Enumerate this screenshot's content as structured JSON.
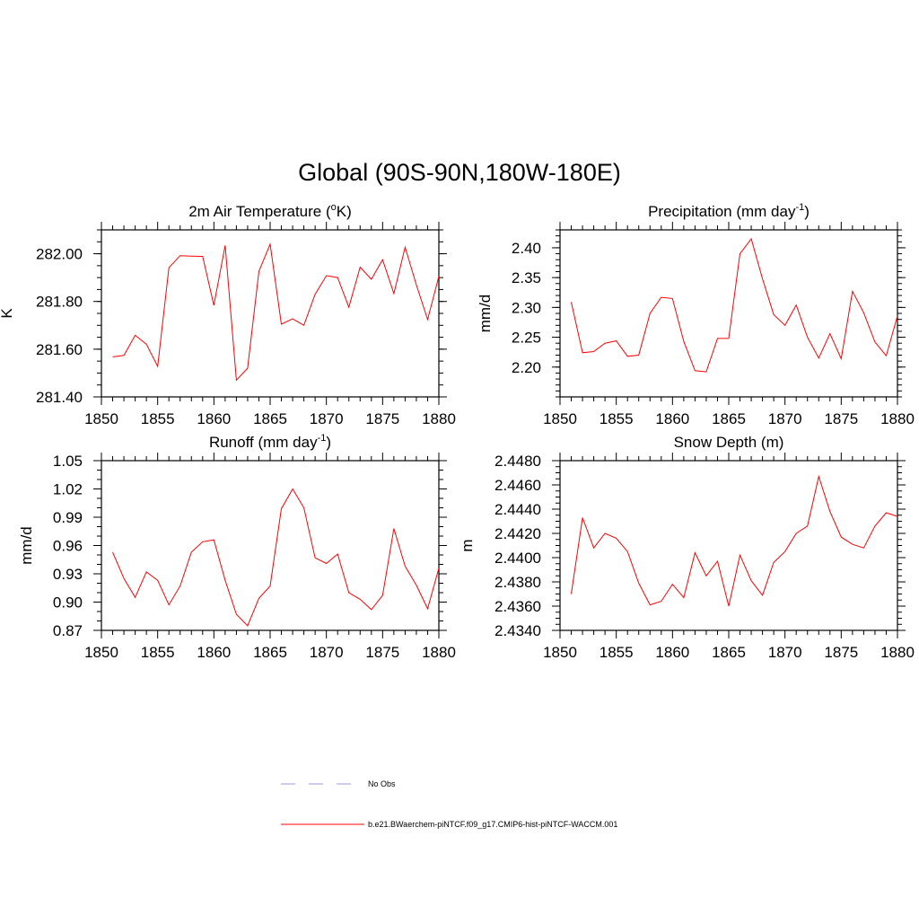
{
  "figure": {
    "title": "Global (90S-90N,180W-180E)"
  },
  "legend": {
    "entries": [
      {
        "label": "No Obs",
        "color": "#9999dd",
        "style": "dashed"
      },
      {
        "label": "b.e21.BWaerchem-piNTCF.f09_g17.CMIP6-hist-piNTCF-WACCM.001",
        "color": "#ff0000",
        "style": "solid"
      }
    ]
  },
  "chart_data": [
    {
      "id": "temp",
      "type": "line",
      "title": "2m Air Temperature (",
      "title_sup": "o",
      "title_after": "K)",
      "ylabel": "K",
      "xlim": [
        1850,
        1880
      ],
      "ylim": [
        281.4,
        282.1
      ],
      "xticks": [
        1850,
        1855,
        1860,
        1865,
        1870,
        1875,
        1880
      ],
      "yticks": [
        281.4,
        281.6,
        281.8,
        282.0
      ],
      "ytick_labels": [
        "281.40",
        "281.60",
        "281.80",
        "282.00"
      ],
      "ytick_step": 0.2,
      "yminor_step": 0.05,
      "x": [
        1851,
        1852,
        1853,
        1854,
        1855,
        1856,
        1857,
        1858,
        1859,
        1860,
        1861,
        1862,
        1863,
        1864,
        1865,
        1866,
        1867,
        1868,
        1869,
        1870,
        1871,
        1872,
        1873,
        1874,
        1875,
        1876,
        1877,
        1878,
        1879,
        1880
      ],
      "series": [
        {
          "name": "b.e21.BWaerchem-piNTCF.f09_g17.CMIP6-hist-piNTCF-WACCM.001",
          "color": "#ff0000",
          "values": [
            281.568,
            281.574,
            281.658,
            281.621,
            281.528,
            281.941,
            281.992,
            281.99,
            281.989,
            281.784,
            282.035,
            281.47,
            281.52,
            281.926,
            282.04,
            281.705,
            281.727,
            281.7,
            281.83,
            281.908,
            281.9,
            281.776,
            281.944,
            281.893,
            281.975,
            281.833,
            282.027,
            281.87,
            281.724,
            281.905
          ]
        }
      ]
    },
    {
      "id": "precip",
      "type": "line",
      "title": "Precipitation (mm day",
      "title_sup": "-1",
      "title_after": ")",
      "ylabel": "mm/d",
      "xlim": [
        1850,
        1880
      ],
      "ylim": [
        2.15,
        2.43
      ],
      "xticks": [
        1850,
        1855,
        1860,
        1865,
        1870,
        1875,
        1880
      ],
      "yticks": [
        2.2,
        2.25,
        2.3,
        2.35,
        2.4
      ],
      "ytick_labels": [
        "2.20",
        "2.25",
        "2.30",
        "2.35",
        "2.40"
      ],
      "yminor_step": 0.01,
      "x": [
        1851,
        1852,
        1853,
        1854,
        1855,
        1856,
        1857,
        1858,
        1859,
        1860,
        1861,
        1862,
        1863,
        1864,
        1865,
        1866,
        1867,
        1868,
        1869,
        1870,
        1871,
        1872,
        1873,
        1874,
        1875,
        1876,
        1877,
        1878,
        1879,
        1880
      ],
      "series": [
        {
          "name": "b.e21.BWaerchem-piNTCF.f09_g17.CMIP6-hist-piNTCF-WACCM.001",
          "color": "#ff0000",
          "values": [
            2.309,
            2.224,
            2.226,
            2.24,
            2.244,
            2.218,
            2.22,
            2.29,
            2.317,
            2.315,
            2.243,
            2.194,
            2.192,
            2.248,
            2.248,
            2.39,
            2.415,
            2.348,
            2.288,
            2.27,
            2.304,
            2.25,
            2.215,
            2.256,
            2.214,
            2.327,
            2.291,
            2.242,
            2.219,
            2.286
          ]
        }
      ]
    },
    {
      "id": "runoff",
      "type": "line",
      "title": "Runoff (mm day",
      "title_sup": "-1",
      "title_after": ")",
      "ylabel": "mm/d",
      "xlim": [
        1850,
        1880
      ],
      "ylim": [
        0.87,
        1.05
      ],
      "xticks": [
        1850,
        1855,
        1860,
        1865,
        1870,
        1875,
        1880
      ],
      "yticks": [
        0.87,
        0.9,
        0.93,
        0.96,
        0.99,
        1.02,
        1.05
      ],
      "ytick_labels": [
        "0.87",
        "0.90",
        "0.93",
        "0.96",
        "0.99",
        "1.02",
        "1.05"
      ],
      "yminor_step": 0.01,
      "x": [
        1851,
        1852,
        1853,
        1854,
        1855,
        1856,
        1857,
        1858,
        1859,
        1860,
        1861,
        1862,
        1863,
        1864,
        1865,
        1866,
        1867,
        1868,
        1869,
        1870,
        1871,
        1872,
        1873,
        1874,
        1875,
        1876,
        1877,
        1878,
        1879,
        1880
      ],
      "series": [
        {
          "name": "b.e21.BWaerchem-piNTCF.f09_g17.CMIP6-hist-piNTCF-WACCM.001",
          "color": "#ff0000",
          "values": [
            0.953,
            0.925,
            0.905,
            0.932,
            0.923,
            0.897,
            0.917,
            0.953,
            0.964,
            0.966,
            0.923,
            0.887,
            0.875,
            0.904,
            0.917,
            0.999,
            1.02,
            1.0,
            0.947,
            0.941,
            0.951,
            0.91,
            0.903,
            0.892,
            0.907,
            0.978,
            0.938,
            0.918,
            0.893,
            0.936
          ]
        }
      ]
    },
    {
      "id": "snow",
      "type": "line",
      "title": "Snow Depth (m)",
      "title_sup": "",
      "title_after": "",
      "ylabel": "m",
      "xlim": [
        1850,
        1880
      ],
      "ylim": [
        2.434,
        2.448
      ],
      "xticks": [
        1850,
        1855,
        1860,
        1865,
        1870,
        1875,
        1880
      ],
      "yticks": [
        2.434,
        2.436,
        2.438,
        2.44,
        2.442,
        2.444,
        2.446,
        2.448
      ],
      "ytick_labels": [
        "2.4340",
        "2.4360",
        "2.4380",
        "2.4400",
        "2.4420",
        "2.4440",
        "2.4460",
        "2.4480"
      ],
      "yminor_step": 0.0005,
      "x": [
        1851,
        1852,
        1853,
        1854,
        1855,
        1856,
        1857,
        1858,
        1859,
        1860,
        1861,
        1862,
        1863,
        1864,
        1865,
        1866,
        1867,
        1868,
        1869,
        1870,
        1871,
        1872,
        1873,
        1874,
        1875,
        1876,
        1877,
        1878,
        1879,
        1880
      ],
      "series": [
        {
          "name": "b.e21.BWaerchem-piNTCF.f09_g17.CMIP6-hist-piNTCF-WACCM.001",
          "color": "#ff0000",
          "values": [
            2.437,
            2.4433,
            2.4408,
            2.442,
            2.4416,
            2.4405,
            2.4379,
            2.4361,
            2.4364,
            2.4378,
            2.4367,
            2.4404,
            2.4385,
            2.4397,
            2.436,
            2.4402,
            2.4381,
            2.4369,
            2.4396,
            2.4405,
            2.442,
            2.4426,
            2.4467,
            2.4438,
            2.4417,
            2.4411,
            2.4408,
            2.4426,
            2.4437,
            2.4434
          ]
        }
      ]
    }
  ]
}
